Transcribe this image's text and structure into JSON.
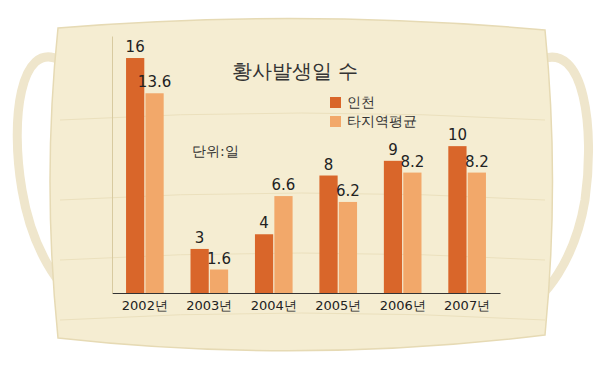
{
  "chart_data": {
    "type": "bar",
    "title": "황사발생일 수",
    "annotations": [
      "단위:일"
    ],
    "categories": [
      "2002년",
      "2003년",
      "2004년",
      "2005년",
      "2006년",
      "2007년"
    ],
    "series": [
      {
        "name": "인천",
        "color": "#d9662a",
        "values": [
          16,
          3,
          4,
          8,
          9,
          10
        ]
      },
      {
        "name": "타지역평균",
        "color": "#f2a86a",
        "values": [
          13.6,
          1.6,
          6.6,
          6.2,
          8.2,
          8.2
        ]
      }
    ],
    "ylim": [
      0,
      17.5
    ],
    "yticks": [],
    "grid": false,
    "legend": "top-right",
    "data_labels": true,
    "tick_labels": "x"
  }
}
